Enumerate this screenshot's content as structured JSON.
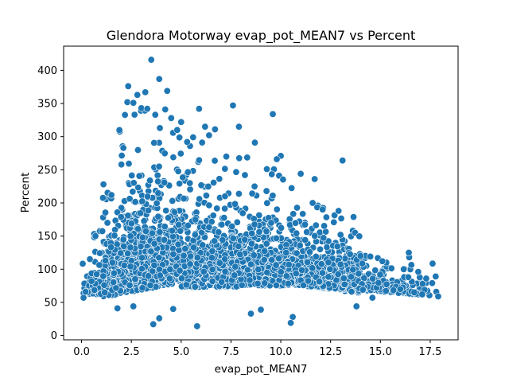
{
  "chart_data": {
    "type": "scatter",
    "title": "Glendora Motorway evap_pot_MEAN7 vs Percent",
    "xlabel": "evap_pot_MEAN7",
    "ylabel": "Percent",
    "xlim": [
      -0.9,
      18.9
    ],
    "ylim": [
      -6.5,
      436.5
    ],
    "x_ticks": [
      0.0,
      2.5,
      5.0,
      7.5,
      10.0,
      12.5,
      15.0,
      17.5
    ],
    "x_tick_labels": [
      "0.0",
      "2.5",
      "5.0",
      "7.5",
      "10.0",
      "12.5",
      "15.0",
      "17.5"
    ],
    "y_ticks": [
      0,
      50,
      100,
      150,
      200,
      250,
      300,
      350,
      400
    ],
    "y_tick_labels": [
      "0",
      "50",
      "100",
      "150",
      "200",
      "250",
      "300",
      "350",
      "400"
    ],
    "point_color": "#1f77b4",
    "point_edge_color": "#ffffff",
    "grid": false,
    "approximate_point_count": 3500,
    "points": [
      [
        3.5,
        416
      ],
      [
        3.9,
        387
      ],
      [
        3.2,
        367
      ],
      [
        4.3,
        369
      ],
      [
        2.8,
        363
      ],
      [
        2.3,
        352
      ],
      [
        2.6,
        351
      ],
      [
        3.0,
        343
      ],
      [
        3.3,
        342
      ],
      [
        5.9,
        342
      ],
      [
        7.6,
        347
      ],
      [
        9.6,
        334
      ],
      [
        4.2,
        341
      ],
      [
        3.7,
        333
      ],
      [
        4.5,
        328
      ],
      [
        13.1,
        264
      ],
      [
        8.7,
        291
      ],
      [
        7.9,
        315
      ],
      [
        6.2,
        315
      ],
      [
        1.9,
        310
      ],
      [
        5.0,
        322
      ],
      [
        5.6,
        299
      ],
      [
        10.6,
        28
      ],
      [
        10.5,
        19
      ],
      [
        3.6,
        17
      ],
      [
        5.8,
        14
      ],
      [
        3.9,
        26
      ],
      [
        0.1,
        57
      ],
      [
        0.2,
        66
      ],
      [
        0.7,
        150
      ],
      [
        1.1,
        228
      ],
      [
        1.8,
        41
      ],
      [
        2.6,
        44
      ],
      [
        4.6,
        40
      ],
      [
        17.9,
        59
      ],
      [
        17.6,
        79
      ],
      [
        17.3,
        86
      ],
      [
        16.9,
        96
      ],
      [
        16.4,
        88
      ],
      [
        15.3,
        110
      ],
      [
        15.1,
        112
      ],
      [
        14.6,
        57
      ],
      [
        13.8,
        44
      ],
      [
        9.0,
        39
      ],
      [
        8.5,
        33
      ],
      [
        11.7,
        236
      ],
      [
        11.0,
        244
      ],
      [
        10.0,
        271
      ],
      [
        9.3,
        251
      ],
      [
        9.8,
        266
      ],
      [
        6.7,
        311
      ],
      [
        6.4,
        302
      ],
      [
        5.3,
        292
      ],
      [
        4.8,
        310
      ],
      [
        2.1,
        283
      ],
      [
        2.0,
        258
      ],
      [
        1.5,
        212
      ],
      [
        1.3,
        170
      ],
      [
        12.1,
        190
      ],
      [
        12.9,
        188
      ],
      [
        11.6,
        200
      ],
      [
        13.0,
        152
      ],
      [
        14.0,
        120
      ],
      [
        16.0,
        70
      ],
      [
        16.7,
        65
      ],
      [
        17.1,
        62
      ],
      [
        1.2,
        113
      ],
      [
        0.5,
        82
      ],
      [
        7.2,
        210
      ],
      [
        8.2,
        242
      ]
    ]
  }
}
